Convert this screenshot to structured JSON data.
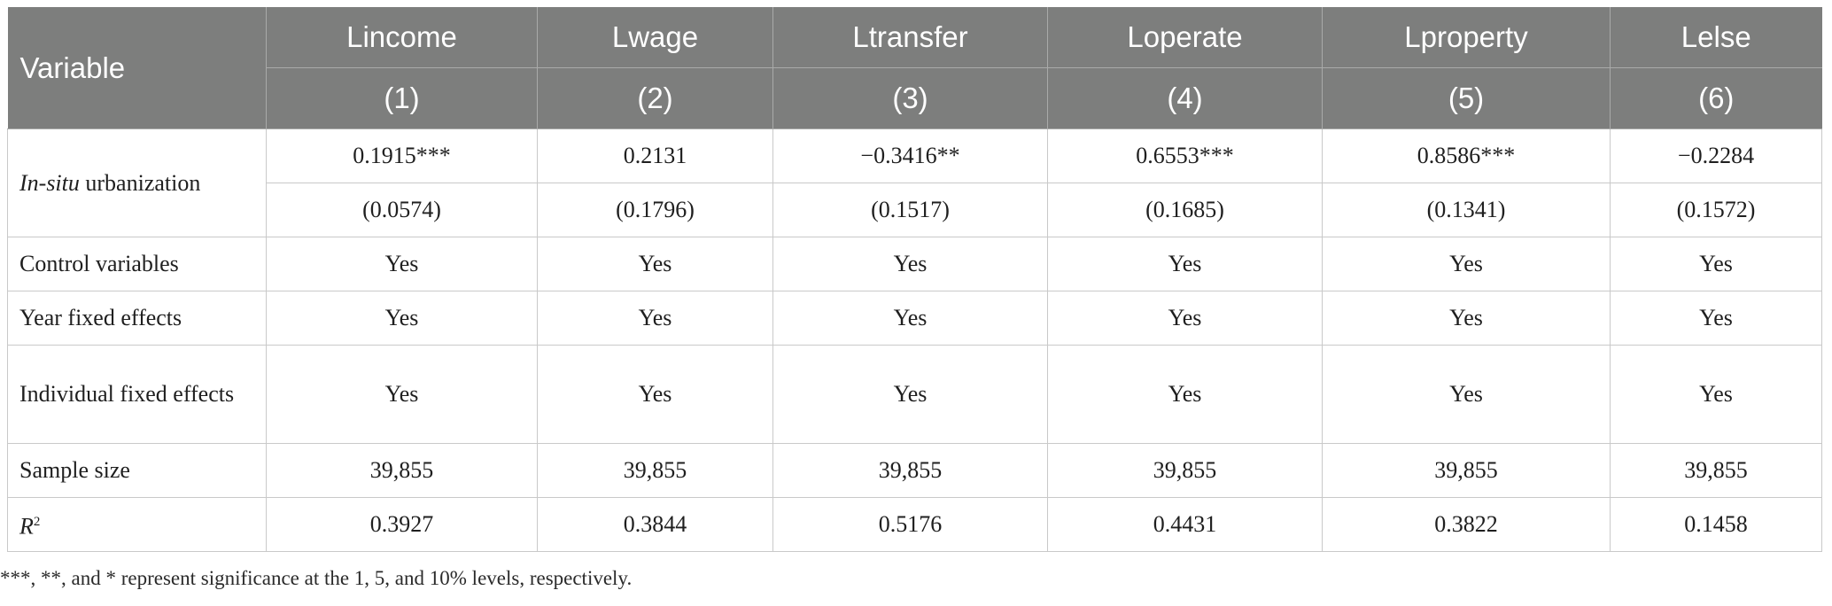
{
  "table": {
    "header_row1": [
      "Variable",
      "Lincome",
      "Lwage",
      "Ltransfer",
      "Loperate",
      "Lproperty",
      "Lelse"
    ],
    "header_row2": [
      "(1)",
      "(2)",
      "(3)",
      "(4)",
      "(5)",
      "(6)"
    ],
    "rows": {
      "insitu": {
        "label_italic": "In-situ",
        "label_rest": " urbanization",
        "coef": [
          "0.1915***",
          "0.2131",
          "−0.3416**",
          "0.6553***",
          "0.8586***",
          "−0.2284"
        ],
        "se": [
          "(0.0574)",
          "(0.1796)",
          "(0.1517)",
          "(0.1685)",
          "(0.1341)",
          "(0.1572)"
        ]
      },
      "control": {
        "label": "Control variables",
        "values": [
          "Yes",
          "Yes",
          "Yes",
          "Yes",
          "Yes",
          "Yes"
        ]
      },
      "year_fe": {
        "label": "Year fixed effects",
        "values": [
          "Yes",
          "Yes",
          "Yes",
          "Yes",
          "Yes",
          "Yes"
        ]
      },
      "indiv_fe": {
        "label": "Individual fixed effects",
        "values": [
          "Yes",
          "Yes",
          "Yes",
          "Yes",
          "Yes",
          "Yes"
        ]
      },
      "sample": {
        "label": "Sample size",
        "values": [
          "39,855",
          "39,855",
          "39,855",
          "39,855",
          "39,855",
          "39,855"
        ]
      },
      "r2": {
        "label_base": "R",
        "label_sup": "2",
        "values": [
          "0.3927",
          "0.3844",
          "0.5176",
          "0.4431",
          "0.3822",
          "0.1458"
        ]
      }
    }
  },
  "footnote": "***, **, and * represent significance at the 1, 5, and 10% levels, respectively."
}
